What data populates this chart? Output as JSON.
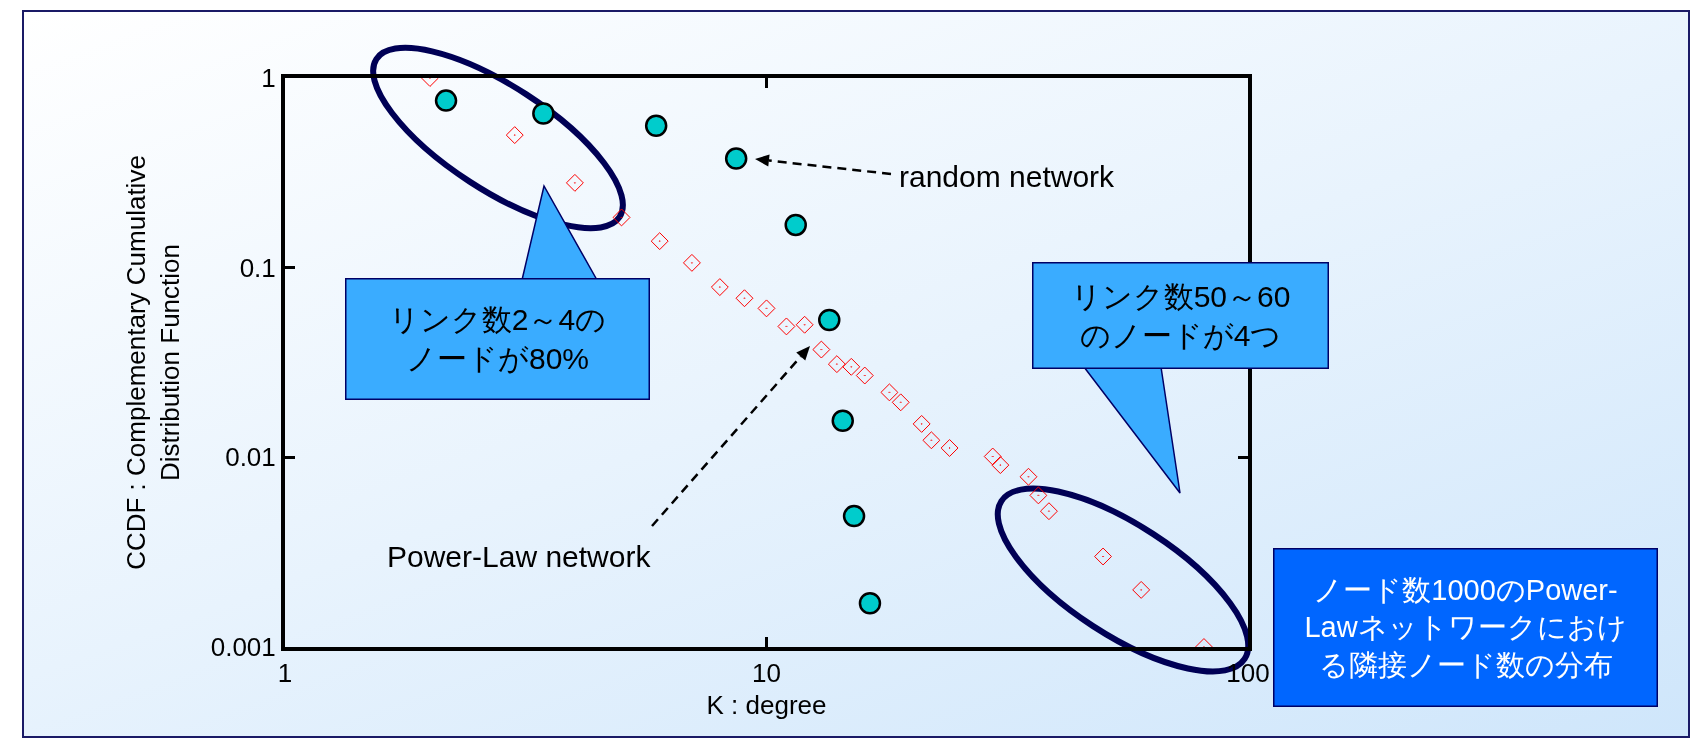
{
  "chart_data": {
    "type": "scatter",
    "xlabel": "K : degree",
    "ylabel": "CCDF : Complementary Cumulative\nDistribution Function",
    "log": "xy",
    "grid": false,
    "xlim": [
      1,
      100
    ],
    "xticks": [
      1,
      10,
      100
    ],
    "ylim": [
      0.001,
      1
    ],
    "yticks": [
      0.001,
      0.01,
      0.1,
      1
    ],
    "series": [
      {
        "color": "#00cccc",
        "marker": "circle",
        "x": [
          2.16,
          3.44,
          5.9,
          8.65,
          11.5,
          13.5,
          14.4,
          15.2,
          16.4
        ],
        "values": [
          0.76,
          0.65,
          0.56,
          0.376,
          0.168,
          0.053,
          0.0156,
          0.0049,
          0.0017
        ]
      },
      {
        "color": "#ff0000",
        "marker": "diamond",
        "x": [
          2,
          3,
          4,
          5,
          6,
          7,
          8,
          9,
          10,
          11,
          12,
          13,
          14,
          15,
          16,
          18,
          19,
          21,
          22,
          24,
          29.5,
          30.6,
          35,
          36.7,
          38.6,
          50,
          60,
          81
        ],
        "values": [
          1,
          0.5,
          0.28,
          0.184,
          0.138,
          0.106,
          0.079,
          0.069,
          0.061,
          0.049,
          0.05,
          0.037,
          0.031,
          0.03,
          0.027,
          0.022,
          0.0195,
          0.015,
          0.0123,
          0.0112,
          0.0101,
          0.0091,
          0.0079,
          0.0063,
          0.0052,
          0.003,
          0.002,
          0.001
        ]
      }
    ],
    "annotations": [
      "random network",
      "Power-Law network",
      "リンク数2～4のノードが80%",
      "リンク数50～60のノードが4つ",
      "ノード数1000のPower-Lawネットワークにおける隣接ノード数の分布"
    ]
  }
}
